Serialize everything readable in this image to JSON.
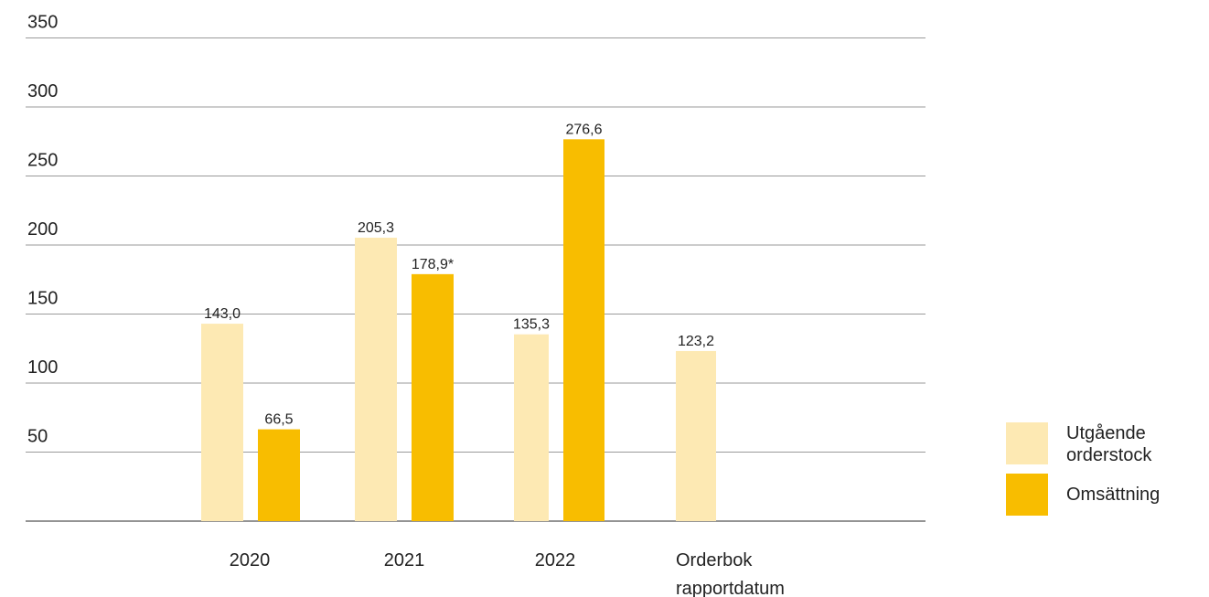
{
  "chart_data": {
    "type": "bar",
    "categories": [
      [
        "2020"
      ],
      [
        "2021"
      ],
      [
        "2022"
      ],
      [
        "Orderbok",
        "rapportdatum"
      ]
    ],
    "series": [
      {
        "name": "Utgående orderstock",
        "legend_lines": [
          "Utgående",
          "orderstock"
        ],
        "color": "#FDE9B3",
        "values": [
          143.0,
          205.3,
          135.3,
          123.2
        ],
        "labels": [
          "143,0",
          "205,3",
          "135,3",
          "123,2"
        ]
      },
      {
        "name": "Omsättning",
        "legend_lines": [
          "Omsättning"
        ],
        "color": "#F8BD00",
        "values": [
          66.5,
          178.9,
          276.6,
          null
        ],
        "labels": [
          "66,5",
          "178,9*",
          "276,6",
          null
        ]
      }
    ],
    "y_ticks": [
      50,
      100,
      150,
      200,
      250,
      300,
      350
    ],
    "ylim": [
      0,
      350
    ],
    "grid": true,
    "legend_position": "right",
    "title": "",
    "xlabel": "",
    "ylabel": ""
  }
}
